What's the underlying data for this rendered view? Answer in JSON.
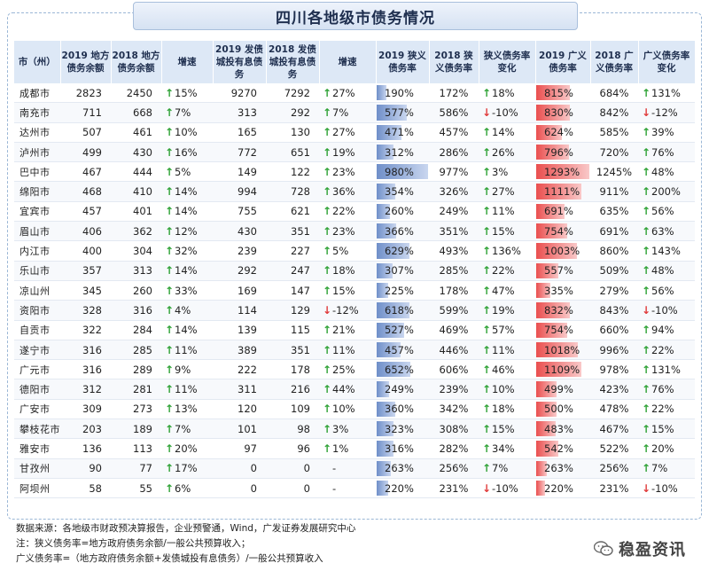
{
  "title": "四川各地级市债务情况",
  "headers": {
    "city": "市（州）",
    "debt2019": "2019 地方债务余额",
    "debt2018": "2018 地方债务余额",
    "debt_growth": "增速",
    "ct2019": "2019 发债城投有息债务",
    "ct2018": "2018 发债城投有息债务",
    "ct_growth": "增速",
    "narrow2019": "2019 狭义债务率",
    "narrow2018": "2018 狭义债务率",
    "narrow_change": "狭义债务率变化",
    "broad2019": "2019 广义债务率",
    "broad2018": "2018 广义债务率",
    "broad_change": "广义债务率变化"
  },
  "rows": [
    {
      "city": "成都市",
      "debt2019": "2823",
      "debt2018": "2450",
      "dg": "15%",
      "dg_dir": "up",
      "ct2019": "9270",
      "ct2018": "7292",
      "cg": "27%",
      "cg_dir": "up",
      "n2019": "190%",
      "n2019_v": 190,
      "n2018": "172%",
      "nc": "18%",
      "nc_dir": "up",
      "b2019": "815%",
      "b2019_v": 815,
      "b2018": "684%",
      "bc": "131%",
      "bc_dir": "up"
    },
    {
      "city": "南充市",
      "debt2019": "711",
      "debt2018": "668",
      "dg": "7%",
      "dg_dir": "up",
      "ct2019": "313",
      "ct2018": "292",
      "cg": "7%",
      "cg_dir": "up",
      "n2019": "577%",
      "n2019_v": 577,
      "n2018": "586%",
      "nc": "-10%",
      "nc_dir": "down",
      "b2019": "830%",
      "b2019_v": 830,
      "b2018": "842%",
      "bc": "-12%",
      "bc_dir": "down"
    },
    {
      "city": "达州市",
      "debt2019": "507",
      "debt2018": "461",
      "dg": "10%",
      "dg_dir": "up",
      "ct2019": "165",
      "ct2018": "130",
      "cg": "27%",
      "cg_dir": "up",
      "n2019": "471%",
      "n2019_v": 471,
      "n2018": "457%",
      "nc": "14%",
      "nc_dir": "up",
      "b2019": "624%",
      "b2019_v": 624,
      "b2018": "585%",
      "bc": "39%",
      "bc_dir": "up"
    },
    {
      "city": "泸州市",
      "debt2019": "499",
      "debt2018": "430",
      "dg": "16%",
      "dg_dir": "up",
      "ct2019": "772",
      "ct2018": "651",
      "cg": "19%",
      "cg_dir": "up",
      "n2019": "312%",
      "n2019_v": 312,
      "n2018": "286%",
      "nc": "26%",
      "nc_dir": "up",
      "b2019": "796%",
      "b2019_v": 796,
      "b2018": "720%",
      "bc": "76%",
      "bc_dir": "up"
    },
    {
      "city": "巴中市",
      "debt2019": "467",
      "debt2018": "444",
      "dg": "5%",
      "dg_dir": "up",
      "ct2019": "149",
      "ct2018": "122",
      "cg": "23%",
      "cg_dir": "up",
      "n2019": "980%",
      "n2019_v": 980,
      "n2018": "977%",
      "nc": "3%",
      "nc_dir": "up",
      "b2019": "1293%",
      "b2019_v": 1293,
      "b2018": "1245%",
      "bc": "48%",
      "bc_dir": "up"
    },
    {
      "city": "绵阳市",
      "debt2019": "468",
      "debt2018": "410",
      "dg": "14%",
      "dg_dir": "up",
      "ct2019": "994",
      "ct2018": "728",
      "cg": "36%",
      "cg_dir": "up",
      "n2019": "354%",
      "n2019_v": 354,
      "n2018": "326%",
      "nc": "27%",
      "nc_dir": "up",
      "b2019": "1111%",
      "b2019_v": 1111,
      "b2018": "911%",
      "bc": "200%",
      "bc_dir": "up"
    },
    {
      "city": "宜宾市",
      "debt2019": "457",
      "debt2018": "401",
      "dg": "14%",
      "dg_dir": "up",
      "ct2019": "755",
      "ct2018": "621",
      "cg": "22%",
      "cg_dir": "up",
      "n2019": "260%",
      "n2019_v": 260,
      "n2018": "249%",
      "nc": "11%",
      "nc_dir": "up",
      "b2019": "691%",
      "b2019_v": 691,
      "b2018": "635%",
      "bc": "56%",
      "bc_dir": "up"
    },
    {
      "city": "眉山市",
      "debt2019": "406",
      "debt2018": "362",
      "dg": "12%",
      "dg_dir": "up",
      "ct2019": "430",
      "ct2018": "351",
      "cg": "23%",
      "cg_dir": "up",
      "n2019": "366%",
      "n2019_v": 366,
      "n2018": "351%",
      "nc": "15%",
      "nc_dir": "up",
      "b2019": "754%",
      "b2019_v": 754,
      "b2018": "691%",
      "bc": "63%",
      "bc_dir": "up"
    },
    {
      "city": "内江市",
      "debt2019": "400",
      "debt2018": "304",
      "dg": "32%",
      "dg_dir": "up",
      "ct2019": "239",
      "ct2018": "227",
      "cg": "5%",
      "cg_dir": "up",
      "n2019": "629%",
      "n2019_v": 629,
      "n2018": "493%",
      "nc": "136%",
      "nc_dir": "up",
      "b2019": "1003%",
      "b2019_v": 1003,
      "b2018": "860%",
      "bc": "143%",
      "bc_dir": "up"
    },
    {
      "city": "乐山市",
      "debt2019": "357",
      "debt2018": "313",
      "dg": "14%",
      "dg_dir": "up",
      "ct2019": "292",
      "ct2018": "247",
      "cg": "18%",
      "cg_dir": "up",
      "n2019": "307%",
      "n2019_v": 307,
      "n2018": "285%",
      "nc": "22%",
      "nc_dir": "up",
      "b2019": "557%",
      "b2019_v": 557,
      "b2018": "509%",
      "bc": "48%",
      "bc_dir": "up"
    },
    {
      "city": "凉山州",
      "debt2019": "345",
      "debt2018": "260",
      "dg": "33%",
      "dg_dir": "up",
      "ct2019": "169",
      "ct2018": "147",
      "cg": "15%",
      "cg_dir": "up",
      "n2019": "225%",
      "n2019_v": 225,
      "n2018": "178%",
      "nc": "47%",
      "nc_dir": "up",
      "b2019": "335%",
      "b2019_v": 335,
      "b2018": "279%",
      "bc": "56%",
      "bc_dir": "up"
    },
    {
      "city": "资阳市",
      "debt2019": "328",
      "debt2018": "316",
      "dg": "4%",
      "dg_dir": "up",
      "ct2019": "114",
      "ct2018": "129",
      "cg": "-12%",
      "cg_dir": "down",
      "n2019": "618%",
      "n2019_v": 618,
      "n2018": "599%",
      "nc": "19%",
      "nc_dir": "up",
      "b2019": "832%",
      "b2019_v": 832,
      "b2018": "843%",
      "bc": "-10%",
      "bc_dir": "down"
    },
    {
      "city": "自贡市",
      "debt2019": "322",
      "debt2018": "284",
      "dg": "14%",
      "dg_dir": "up",
      "ct2019": "139",
      "ct2018": "115",
      "cg": "21%",
      "cg_dir": "up",
      "n2019": "527%",
      "n2019_v": 527,
      "n2018": "469%",
      "nc": "57%",
      "nc_dir": "up",
      "b2019": "754%",
      "b2019_v": 754,
      "b2018": "660%",
      "bc": "94%",
      "bc_dir": "up"
    },
    {
      "city": "遂宁市",
      "debt2019": "316",
      "debt2018": "285",
      "dg": "11%",
      "dg_dir": "up",
      "ct2019": "389",
      "ct2018": "351",
      "cg": "11%",
      "cg_dir": "up",
      "n2019": "457%",
      "n2019_v": 457,
      "n2018": "446%",
      "nc": "11%",
      "nc_dir": "up",
      "b2019": "1018%",
      "b2019_v": 1018,
      "b2018": "996%",
      "bc": "22%",
      "bc_dir": "up"
    },
    {
      "city": "广元市",
      "debt2019": "316",
      "debt2018": "289",
      "dg": "9%",
      "dg_dir": "up",
      "ct2019": "222",
      "ct2018": "178",
      "cg": "25%",
      "cg_dir": "up",
      "n2019": "652%",
      "n2019_v": 652,
      "n2018": "606%",
      "nc": "46%",
      "nc_dir": "up",
      "b2019": "1109%",
      "b2019_v": 1109,
      "b2018": "978%",
      "bc": "131%",
      "bc_dir": "up"
    },
    {
      "city": "德阳市",
      "debt2019": "312",
      "debt2018": "281",
      "dg": "11%",
      "dg_dir": "up",
      "ct2019": "311",
      "ct2018": "216",
      "cg": "44%",
      "cg_dir": "up",
      "n2019": "249%",
      "n2019_v": 249,
      "n2018": "239%",
      "nc": "10%",
      "nc_dir": "up",
      "b2019": "499%",
      "b2019_v": 499,
      "b2018": "423%",
      "bc": "76%",
      "bc_dir": "up"
    },
    {
      "city": "广安市",
      "debt2019": "309",
      "debt2018": "273",
      "dg": "13%",
      "dg_dir": "up",
      "ct2019": "120",
      "ct2018": "109",
      "cg": "10%",
      "cg_dir": "up",
      "n2019": "360%",
      "n2019_v": 360,
      "n2018": "342%",
      "nc": "18%",
      "nc_dir": "up",
      "b2019": "500%",
      "b2019_v": 500,
      "b2018": "478%",
      "bc": "22%",
      "bc_dir": "up"
    },
    {
      "city": "攀枝花市",
      "debt2019": "203",
      "debt2018": "189",
      "dg": "7%",
      "dg_dir": "up",
      "ct2019": "101",
      "ct2018": "98",
      "cg": "3%",
      "cg_dir": "up",
      "n2019": "323%",
      "n2019_v": 323,
      "n2018": "308%",
      "nc": "15%",
      "nc_dir": "up",
      "b2019": "483%",
      "b2019_v": 483,
      "b2018": "467%",
      "bc": "15%",
      "bc_dir": "up"
    },
    {
      "city": "雅安市",
      "debt2019": "136",
      "debt2018": "113",
      "dg": "20%",
      "dg_dir": "up",
      "ct2019": "97",
      "ct2018": "96",
      "cg": "1%",
      "cg_dir": "up",
      "n2019": "316%",
      "n2019_v": 316,
      "n2018": "282%",
      "nc": "34%",
      "nc_dir": "up",
      "b2019": "542%",
      "b2019_v": 542,
      "b2018": "522%",
      "bc": "20%",
      "bc_dir": "up"
    },
    {
      "city": "甘孜州",
      "debt2019": "90",
      "debt2018": "77",
      "dg": "17%",
      "dg_dir": "up",
      "ct2019": "0",
      "ct2018": "0",
      "cg": "-",
      "cg_dir": "none",
      "n2019": "263%",
      "n2019_v": 263,
      "n2018": "256%",
      "nc": "7%",
      "nc_dir": "up",
      "b2019": "263%",
      "b2019_v": 263,
      "b2018": "256%",
      "bc": "7%",
      "bc_dir": "up"
    },
    {
      "city": "阿坝州",
      "debt2019": "58",
      "debt2018": "55",
      "dg": "6%",
      "dg_dir": "up",
      "ct2019": "0",
      "ct2018": "0",
      "cg": "-",
      "cg_dir": "none",
      "n2019": "220%",
      "n2019_v": 220,
      "n2018": "231%",
      "nc": "-10%",
      "nc_dir": "down",
      "b2019": "220%",
      "b2019_v": 220,
      "b2018": "231%",
      "bc": "-10%",
      "bc_dir": "down"
    }
  ],
  "footer": {
    "source": "数据来源：各地级市财政预决算报告，企业预警通，Wind，广发证券发展研究中心",
    "note1": "注：狭义债务率=地方政府债务余额/一般公共预算收入；",
    "note2": "广义债务率=（地方政府债务余额+发债城投有息债务）/一般公共预算收入"
  },
  "watermark": {
    "text": "稳盈资讯",
    "icon": "wechat-icon"
  },
  "colors": {
    "up": "#2fa236",
    "down": "#e03b3b",
    "narrow_bar": "#6f8fc9",
    "broad_bar": "#ea4f4f",
    "header_bg": "#dde8f6"
  },
  "bar_scale": {
    "narrow_max": 980,
    "broad_max": 1293
  }
}
